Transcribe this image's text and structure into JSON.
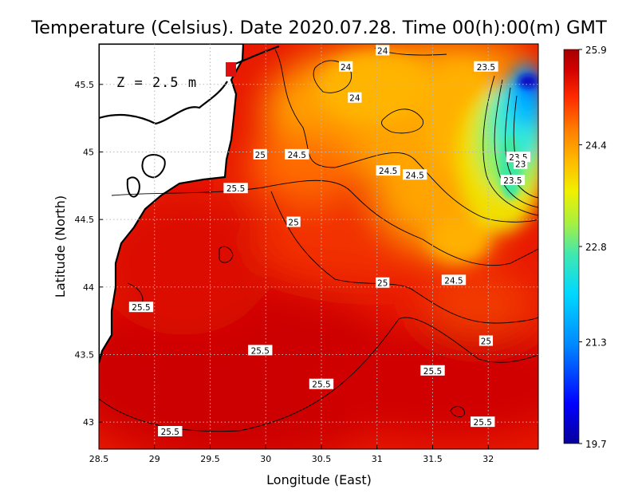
{
  "title": "Temperature (Celsius). Date 2020.07.28. Time 00(h):00(m) GMT",
  "depth_label": "Z = 2.5 m",
  "x_axis": {
    "label": "Longitude (East)",
    "ticks": [
      "28.5",
      "29",
      "29.5",
      "30",
      "30.5",
      "31",
      "31.5",
      "32"
    ],
    "values": [
      28.5,
      29,
      29.5,
      30,
      30.5,
      31,
      31.5,
      32
    ],
    "range": [
      28.5,
      32.45
    ]
  },
  "y_axis": {
    "label": "Latitude (North)",
    "ticks": [
      "43",
      "43.5",
      "44",
      "44.5",
      "45",
      "45.5"
    ],
    "values": [
      43,
      43.5,
      44,
      44.5,
      45,
      45.5
    ],
    "range": [
      42.8,
      45.8
    ]
  },
  "colorbar": {
    "ticks": [
      "25.9",
      "24.4",
      "22.8",
      "21.3",
      "19.7"
    ],
    "min": 19.7,
    "max": 25.9,
    "colors": [
      "#08009a",
      "#0000ff",
      "#0088ff",
      "#00d8ff",
      "#40e8b0",
      "#a8f040",
      "#f0f000",
      "#ffb800",
      "#ff7a00",
      "#ff2a00",
      "#d00000",
      "#a50000"
    ]
  },
  "contour_labels": [
    {
      "text": "24",
      "lon": 31.05,
      "lat": 45.75
    },
    {
      "text": "24",
      "lon": 30.72,
      "lat": 45.63
    },
    {
      "text": "24",
      "lon": 30.8,
      "lat": 45.4
    },
    {
      "text": "23.5",
      "lon": 31.98,
      "lat": 45.63
    },
    {
      "text": "25",
      "lon": 29.95,
      "lat": 44.98
    },
    {
      "text": "24.5",
      "lon": 30.28,
      "lat": 44.98
    },
    {
      "text": "24.5",
      "lon": 31.1,
      "lat": 44.86
    },
    {
      "text": "24.5",
      "lon": 31.34,
      "lat": 44.83
    },
    {
      "text": "23.5",
      "lon": 32.27,
      "lat": 44.96
    },
    {
      "text": "23",
      "lon": 32.29,
      "lat": 44.91
    },
    {
      "text": "23.5",
      "lon": 32.22,
      "lat": 44.79
    },
    {
      "text": "25.5",
      "lon": 29.73,
      "lat": 44.73
    },
    {
      "text": "25",
      "lon": 30.25,
      "lat": 44.48
    },
    {
      "text": "25",
      "lon": 31.05,
      "lat": 44.03
    },
    {
      "text": "24.5",
      "lon": 31.69,
      "lat": 44.05
    },
    {
      "text": "25.5",
      "lon": 28.88,
      "lat": 43.85
    },
    {
      "text": "25.5",
      "lon": 29.95,
      "lat": 43.53
    },
    {
      "text": "25",
      "lon": 31.98,
      "lat": 43.6
    },
    {
      "text": "25.5",
      "lon": 31.5,
      "lat": 43.38
    },
    {
      "text": "25.5",
      "lon": 30.5,
      "lat": 43.28
    },
    {
      "text": "25.5",
      "lon": 31.95,
      "lat": 43.0
    },
    {
      "text": "25.5",
      "lon": 29.14,
      "lat": 42.93
    }
  ]
}
